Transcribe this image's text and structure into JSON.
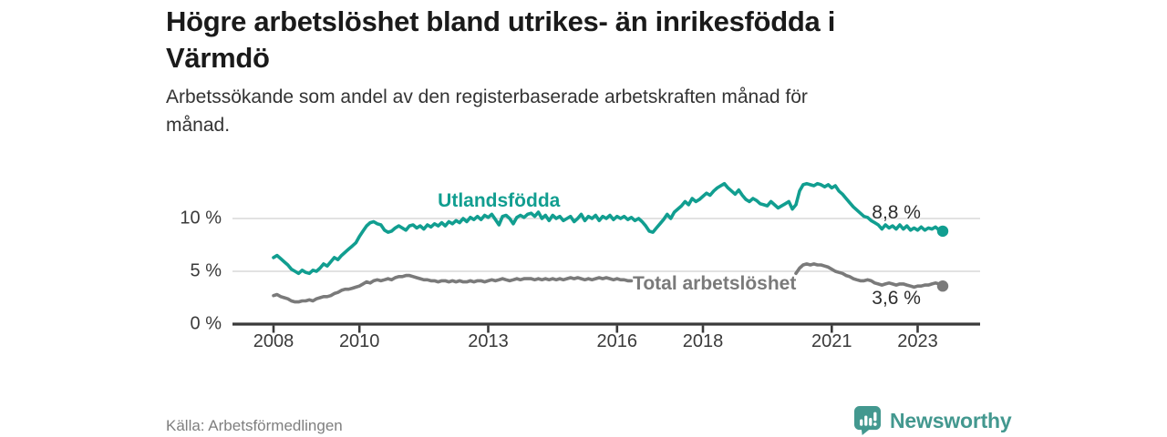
{
  "header": {
    "title_lines": [
      "Högre arbetslöshet bland utrikes- än inrikesfödda i",
      "Värmdö"
    ],
    "subtitle_lines": [
      "Arbetssökande som andel av den registerbaserade arbetskraften månad för",
      "månad."
    ]
  },
  "footer": {
    "source": "Källa: Arbetsförmedlingen",
    "brand_name": "Newsworthy"
  },
  "colors": {
    "accent_teal": "#119e90",
    "line_gray": "#7a7a7a",
    "brand_teal": "#43988f",
    "axis": "#3a3a3a",
    "grid": "#d8d8d8",
    "value_label": "#2d2d2d"
  },
  "chart_data": {
    "type": "line",
    "title": "Högre arbetslöshet bland utrikes- än inrikesfödda i Värmdö",
    "xlabel": "",
    "ylabel": "Arbetssökande som andel av den registerbaserade arbetskraften",
    "x_unit": "month",
    "x_start": "2008-01",
    "x_end": "2023-08",
    "grid": true,
    "legend_position": "inline-labels",
    "ylim": [
      0,
      14
    ],
    "x_ticks": [
      {
        "label": "2008",
        "year": 2008
      },
      {
        "label": "2010",
        "year": 2010
      },
      {
        "label": "2013",
        "year": 2013
      },
      {
        "label": "2016",
        "year": 2016
      },
      {
        "label": "2018",
        "year": 2018
      },
      {
        "label": "2021",
        "year": 2021
      },
      {
        "label": "2023",
        "year": 2023
      }
    ],
    "y_ticks": [
      {
        "label": "0 %",
        "value": 0
      },
      {
        "label": "5 %",
        "value": 5
      },
      {
        "label": "10 %",
        "value": 10
      }
    ],
    "series": [
      {
        "name": "Utlandsfödda",
        "color": "#119e90",
        "end_label": "8,8 %",
        "end_value": 8.8,
        "label_anchor": {
          "year": 2013.25,
          "pct": 11.65
        },
        "values": [
          6.3,
          6.5,
          6.2,
          5.9,
          5.6,
          5.2,
          5.0,
          4.8,
          5.1,
          4.9,
          4.8,
          5.1,
          5.0,
          5.3,
          5.7,
          5.5,
          5.9,
          6.3,
          6.1,
          6.5,
          6.8,
          7.1,
          7.4,
          7.7,
          8.3,
          8.8,
          9.3,
          9.6,
          9.7,
          9.5,
          9.4,
          8.9,
          8.7,
          8.8,
          9.1,
          9.3,
          9.1,
          8.9,
          9.3,
          9.4,
          9.1,
          9.3,
          9.0,
          9.4,
          9.2,
          9.5,
          9.3,
          9.6,
          9.3,
          9.7,
          9.5,
          9.8,
          9.6,
          10.0,
          9.7,
          10.1,
          9.9,
          10.2,
          9.9,
          10.3,
          10.1,
          10.4,
          9.9,
          9.4,
          10.2,
          10.3,
          10.0,
          9.5,
          10.1,
          10.3,
          10.1,
          10.4,
          10.5,
          10.2,
          10.6,
          10.0,
          10.3,
          9.8,
          10.3,
          10.0,
          10.2,
          9.8,
          10.0,
          10.2,
          9.7,
          10.0,
          10.4,
          9.8,
          10.2,
          10.0,
          10.3,
          9.8,
          10.2,
          10.0,
          10.3,
          9.9,
          10.2,
          10.0,
          10.2,
          9.9,
          10.1,
          9.8,
          10.0,
          9.7,
          9.3,
          8.8,
          8.7,
          9.1,
          9.5,
          9.9,
          10.4,
          10.0,
          10.6,
          10.9,
          11.2,
          11.6,
          11.3,
          11.9,
          11.6,
          11.8,
          12.1,
          12.4,
          12.2,
          12.6,
          12.9,
          13.1,
          13.3,
          12.9,
          12.6,
          12.3,
          12.7,
          12.2,
          11.8,
          11.6,
          11.9,
          11.7,
          11.4,
          11.3,
          11.2,
          11.6,
          11.3,
          11.0,
          11.2,
          11.4,
          11.6,
          10.9,
          11.3,
          12.6,
          13.2,
          13.3,
          13.2,
          13.1,
          13.3,
          13.2,
          13.0,
          13.2,
          12.9,
          13.1,
          12.6,
          12.3,
          11.9,
          11.5,
          11.1,
          10.8,
          10.5,
          10.2,
          10.1,
          9.8,
          9.6,
          9.4,
          9.0,
          9.4,
          9.1,
          9.3,
          9.0,
          9.4,
          9.0,
          9.3,
          8.9,
          9.1,
          8.9,
          9.2,
          8.9,
          9.1,
          9.0,
          9.2,
          8.9,
          8.8
        ]
      },
      {
        "name": "Total arbetslöshet",
        "color": "#7a7a7a",
        "end_label": "3,6 %",
        "end_value": 3.6,
        "label_anchor": {
          "year": 2018.27,
          "pct": 3.8
        },
        "hidden_by_label_months": [
          101,
          145
        ],
        "values": [
          2.7,
          2.8,
          2.6,
          2.5,
          2.4,
          2.2,
          2.1,
          2.1,
          2.2,
          2.2,
          2.3,
          2.2,
          2.4,
          2.5,
          2.6,
          2.6,
          2.7,
          2.9,
          3.0,
          3.2,
          3.3,
          3.3,
          3.4,
          3.5,
          3.6,
          3.8,
          4.0,
          3.9,
          4.1,
          4.2,
          4.1,
          4.2,
          4.3,
          4.2,
          4.4,
          4.5,
          4.5,
          4.6,
          4.6,
          4.5,
          4.4,
          4.3,
          4.2,
          4.2,
          4.1,
          4.1,
          4.0,
          4.1,
          4.1,
          4.0,
          4.1,
          4.0,
          4.1,
          4.0,
          4.0,
          4.1,
          4.0,
          4.1,
          4.1,
          4.0,
          4.1,
          4.2,
          4.1,
          4.2,
          4.3,
          4.2,
          4.1,
          4.2,
          4.3,
          4.2,
          4.3,
          4.3,
          4.3,
          4.2,
          4.3,
          4.2,
          4.3,
          4.2,
          4.3,
          4.2,
          4.3,
          4.2,
          4.3,
          4.4,
          4.3,
          4.4,
          4.3,
          4.2,
          4.3,
          4.2,
          4.3,
          4.4,
          4.3,
          4.4,
          4.3,
          4.2,
          4.3,
          4.2,
          4.2,
          4.1,
          4.1,
          4.0,
          4.0,
          3.9,
          3.9,
          3.8,
          3.7,
          3.8,
          3.7,
          3.7,
          3.6,
          3.6,
          3.5,
          3.5,
          3.5,
          3.6,
          3.6,
          3.5,
          3.6,
          3.6,
          3.6,
          3.5,
          3.5,
          3.4,
          3.4,
          3.5,
          3.5,
          3.6,
          3.5,
          3.5,
          3.6,
          3.6,
          3.6,
          3.7,
          3.6,
          3.7,
          3.7,
          3.8,
          3.8,
          3.9,
          3.8,
          3.9,
          4.0,
          4.0,
          4.1,
          4.3,
          4.8,
          5.3,
          5.6,
          5.7,
          5.6,
          5.7,
          5.6,
          5.6,
          5.5,
          5.4,
          5.2,
          5.0,
          4.9,
          4.8,
          4.6,
          4.5,
          4.3,
          4.2,
          4.1,
          4.1,
          4.2,
          4.1,
          3.9,
          3.8,
          3.7,
          3.8,
          3.9,
          3.8,
          3.7,
          3.8,
          3.8,
          3.7,
          3.6,
          3.5,
          3.6,
          3.6,
          3.7,
          3.7,
          3.8,
          3.9,
          3.8,
          3.6
        ]
      }
    ]
  }
}
